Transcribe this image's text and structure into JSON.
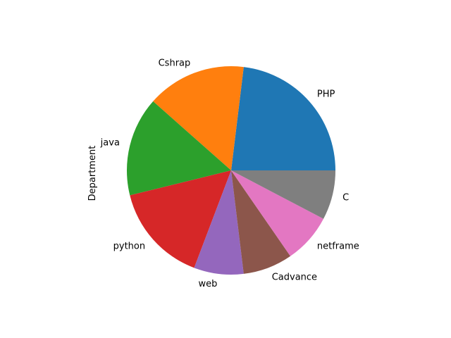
{
  "chart_data": {
    "type": "pie",
    "ylabel": "Department",
    "start_angle_deg": 0,
    "direction": "counterclockwise",
    "slices": [
      {
        "label": "PHP",
        "value": 3,
        "color": "#1f77b4"
      },
      {
        "label": "Cshrap",
        "value": 2,
        "color": "#ff7f0e"
      },
      {
        "label": "java",
        "value": 2,
        "color": "#2ca02c"
      },
      {
        "label": "python",
        "value": 2,
        "color": "#d62728"
      },
      {
        "label": "web",
        "value": 1,
        "color": "#9467bd"
      },
      {
        "label": "Cadvance",
        "value": 1,
        "color": "#8c564b"
      },
      {
        "label": "netframe",
        "value": 1,
        "color": "#e377c2"
      },
      {
        "label": "C",
        "value": 1,
        "color": "#7f7f7f"
      }
    ]
  }
}
